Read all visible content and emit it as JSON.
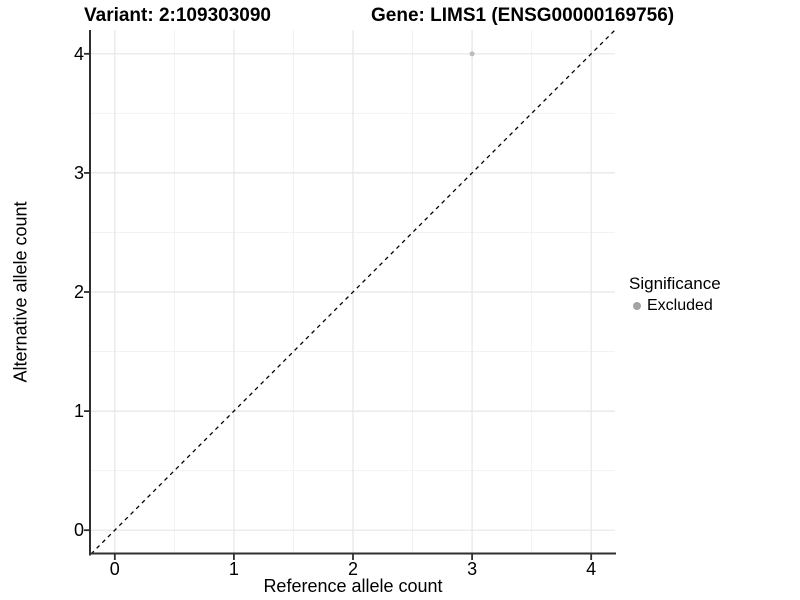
{
  "titles": {
    "variant": "Variant: 2:109303090",
    "gene": "Gene: LIMS1 (ENSG00000169756)"
  },
  "axes": {
    "x_label": "Reference allele count",
    "y_label": "Alternative allele count"
  },
  "legend": {
    "title": "Significance",
    "items": [
      {
        "label": "Excluded",
        "color": "#a4a4a4"
      }
    ]
  },
  "colors": {
    "background": "#ffffff",
    "grid_major": "#e6e6e6",
    "grid_minor": "#f2f2f2",
    "axis_line": "#2f2f2f",
    "tick_mark": "#2f2f2f",
    "identity_line": "#000000",
    "point": "#bcbcbc"
  },
  "chart_data": {
    "type": "scatter",
    "title": "Variant: 2:109303090   Gene: LIMS1 (ENSG00000169756)",
    "xlabel": "Reference allele count",
    "ylabel": "Alternative allele count",
    "xlim": [
      -0.2,
      4.2
    ],
    "ylim": [
      -0.2,
      4.2
    ],
    "x_ticks": [
      0,
      1,
      2,
      3,
      4
    ],
    "y_ticks": [
      0,
      1,
      2,
      3,
      4
    ],
    "grid": true,
    "legend_position": "right",
    "series": [
      {
        "name": "Excluded",
        "color": "#bcbcbc",
        "points": [
          {
            "x": 3,
            "y": 4
          }
        ]
      }
    ],
    "reference_line": {
      "kind": "identity",
      "style": "dashed",
      "from": [
        -0.2,
        -0.2
      ],
      "to": [
        4.2,
        4.2
      ]
    }
  }
}
